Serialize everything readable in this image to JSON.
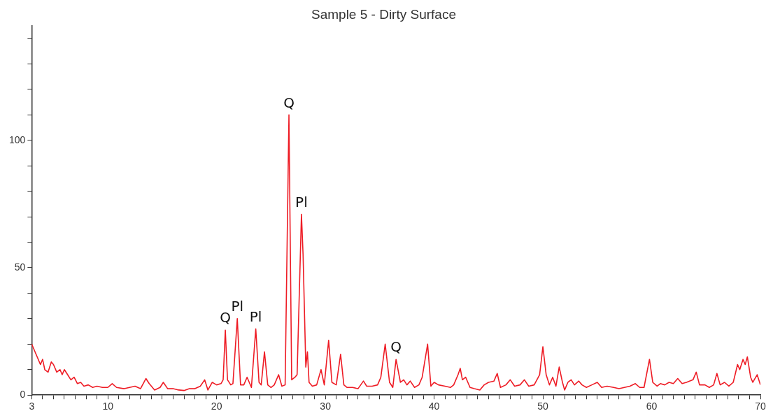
{
  "chart_data": {
    "type": "line",
    "title": "Sample 5 - Dirty Surface",
    "series": [
      {
        "color": "#ee1c25",
        "x": [
          3.0,
          3.3,
          3.5,
          3.8,
          4.0,
          4.2,
          4.5,
          4.8,
          5.0,
          5.3,
          5.6,
          5.8,
          6.0,
          6.3,
          6.6,
          6.9,
          7.2,
          7.5,
          7.8,
          8.2,
          8.6,
          9.0,
          9.5,
          10.0,
          10.4,
          10.8,
          11.5,
          12.0,
          12.5,
          13.0,
          13.5,
          13.8,
          14.3,
          14.8,
          15.1,
          15.5,
          16.0,
          16.5,
          17.0,
          17.5,
          18.0,
          18.5,
          18.9,
          19.2,
          19.6,
          20.0,
          20.4,
          20.6,
          20.8,
          21.0,
          21.3,
          21.5,
          21.9,
          22.2,
          22.5,
          22.8,
          23.2,
          23.6,
          23.9,
          24.1,
          24.4,
          24.7,
          25.0,
          25.3,
          25.7,
          26.0,
          26.3,
          26.65,
          26.9,
          27.2,
          27.4,
          27.8,
          27.95,
          28.2,
          28.35,
          28.5,
          28.8,
          29.2,
          29.6,
          29.9,
          30.3,
          30.6,
          31.0,
          31.4,
          31.7,
          32.0,
          32.5,
          33.0,
          33.5,
          33.8,
          34.3,
          34.8,
          35.1,
          35.5,
          35.9,
          36.2,
          36.5,
          36.9,
          37.2,
          37.5,
          37.8,
          38.2,
          38.6,
          38.9,
          39.4,
          39.7,
          40.0,
          40.4,
          41.0,
          41.5,
          41.8,
          42.2,
          42.4,
          42.6,
          42.9,
          43.3,
          43.7,
          44.2,
          44.6,
          45.0,
          45.5,
          45.8,
          46.1,
          46.6,
          47.0,
          47.4,
          47.9,
          48.3,
          48.7,
          49.2,
          49.7,
          50.0,
          50.3,
          50.6,
          50.9,
          51.2,
          51.5,
          51.8,
          52.0,
          52.3,
          52.6,
          52.9,
          53.3,
          53.6,
          54.0,
          54.5,
          55.0,
          55.4,
          55.9,
          56.5,
          57.0,
          57.5,
          58.0,
          58.5,
          58.9,
          59.3,
          59.8,
          60.1,
          60.5,
          60.8,
          61.2,
          61.6,
          62.0,
          62.4,
          62.8,
          63.2,
          63.8,
          64.1,
          64.4,
          64.9,
          65.3,
          65.7,
          66.0,
          66.3,
          66.7,
          67.1,
          67.5,
          67.9,
          68.1,
          68.4,
          68.6,
          68.8,
          69.1,
          69.3,
          69.7,
          70.0
        ],
        "values": [
          20,
          17,
          15,
          12,
          14,
          10,
          9,
          13,
          12,
          9,
          10,
          8,
          10,
          8,
          6,
          7,
          4.5,
          5,
          3.5,
          4,
          3,
          3.5,
          3,
          3,
          4.5,
          3,
          2.5,
          3,
          3.5,
          2.5,
          6.5,
          4.5,
          2,
          3,
          5,
          2.5,
          2.5,
          2,
          1.8,
          2.5,
          2.5,
          3.5,
          6,
          2,
          5,
          4,
          4.5,
          6,
          25.5,
          6,
          4,
          4.5,
          30,
          4,
          4,
          7,
          3,
          26,
          5,
          4,
          17,
          4,
          3,
          4,
          8,
          3.5,
          4,
          110,
          6,
          7,
          8,
          71,
          55,
          11,
          17,
          5,
          3.5,
          4,
          10,
          4,
          21.5,
          5,
          4,
          16,
          4,
          3,
          3,
          2.5,
          5.5,
          3.5,
          3.5,
          4,
          7,
          20,
          5,
          3,
          14,
          5,
          6,
          4,
          5.5,
          3,
          4,
          7,
          20,
          3.5,
          5,
          4,
          3.5,
          3,
          4,
          8,
          10.5,
          6,
          7,
          3,
          2.5,
          2,
          4,
          5,
          5.5,
          8.5,
          3,
          4,
          6,
          3.5,
          4,
          6,
          3.5,
          4,
          8,
          19,
          8,
          4,
          7,
          3.5,
          11,
          5,
          2,
          5,
          6,
          4,
          5.5,
          4,
          3,
          4,
          5,
          3,
          3.5,
          3,
          2.5,
          3,
          3.5,
          4.5,
          3,
          3,
          14,
          5,
          3.5,
          4.5,
          4,
          5,
          4.5,
          6.5,
          4.5,
          5,
          6,
          9,
          4,
          4,
          3,
          4,
          8.5,
          4,
          5,
          3.5,
          5,
          12,
          10,
          14,
          12,
          15,
          7,
          5,
          8,
          4
        ]
      }
    ],
    "xlim": [
      3,
      70
    ],
    "xticks": [
      3,
      {
        "value": 4,
        "label": null
      },
      {
        "value": 5,
        "label": null
      },
      {
        "value": 6,
        "label": null
      },
      {
        "value": 7,
        "label": null
      },
      {
        "value": 8,
        "label": null
      },
      {
        "value": 9,
        "label": null
      },
      10,
      {
        "value": 11,
        "label": null
      },
      {
        "value": 12,
        "label": null
      },
      {
        "value": 13,
        "label": null
      },
      {
        "value": 14,
        "label": null
      },
      {
        "value": 15,
        "label": null
      },
      {
        "value": 16,
        "label": null
      },
      {
        "value": 17,
        "label": null
      },
      {
        "value": 18,
        "label": null
      },
      {
        "value": 19,
        "label": null
      },
      20,
      {
        "value": 21,
        "label": null
      },
      {
        "value": 22,
        "label": null
      },
      {
        "value": 23,
        "label": null
      },
      {
        "value": 24,
        "label": null
      },
      {
        "value": 25,
        "label": null
      },
      {
        "value": 26,
        "label": null
      },
      {
        "value": 27,
        "label": null
      },
      {
        "value": 28,
        "label": null
      },
      {
        "value": 29,
        "label": null
      },
      30,
      {
        "value": 31,
        "label": null
      },
      {
        "value": 32,
        "label": null
      },
      {
        "value": 33,
        "label": null
      },
      {
        "value": 34,
        "label": null
      },
      {
        "value": 35,
        "label": null
      },
      {
        "value": 36,
        "label": null
      },
      {
        "value": 37,
        "label": null
      },
      {
        "value": 38,
        "label": null
      },
      {
        "value": 39,
        "label": null
      },
      40,
      {
        "value": 41,
        "label": null
      },
      {
        "value": 42,
        "label": null
      },
      {
        "value": 43,
        "label": null
      },
      {
        "value": 44,
        "label": null
      },
      {
        "value": 45,
        "label": null
      },
      {
        "value": 46,
        "label": null
      },
      {
        "value": 47,
        "label": null
      },
      {
        "value": 48,
        "label": null
      },
      {
        "value": 49,
        "label": null
      },
      50,
      {
        "value": 51,
        "label": null
      },
      {
        "value": 52,
        "label": null
      },
      {
        "value": 53,
        "label": null
      },
      {
        "value": 54,
        "label": null
      },
      {
        "value": 55,
        "label": null
      },
      {
        "value": 56,
        "label": null
      },
      {
        "value": 57,
        "label": null
      },
      {
        "value": 58,
        "label": null
      },
      {
        "value": 59,
        "label": null
      },
      60,
      {
        "value": 61,
        "label": null
      },
      {
        "value": 62,
        "label": null
      },
      {
        "value": 63,
        "label": null
      },
      {
        "value": 64,
        "label": null
      },
      {
        "value": 65,
        "label": null
      },
      {
        "value": 66,
        "label": null
      },
      {
        "value": 67,
        "label": null
      },
      {
        "value": 68,
        "label": null
      },
      {
        "value": 69,
        "label": null
      },
      70
    ],
    "ylim": [
      0,
      145
    ],
    "yticks": [
      0,
      {
        "value": 10,
        "label": null
      },
      {
        "value": 20,
        "label": null
      },
      {
        "value": 30,
        "label": null
      },
      {
        "value": 40,
        "label": null
      },
      50,
      {
        "value": 60,
        "label": null
      },
      {
        "value": 70,
        "label": null
      },
      {
        "value": 80,
        "label": null
      },
      {
        "value": 90,
        "label": null
      },
      100,
      {
        "value": 110,
        "label": null
      },
      {
        "value": 120,
        "label": null
      },
      {
        "value": 130,
        "label": null
      },
      {
        "value": 140,
        "label": null
      }
    ],
    "grid": false,
    "marker": "none",
    "line_style": "solid",
    "legend": false,
    "annotations": [
      {
        "text": "Q",
        "x": 20.8,
        "y": 25.5
      },
      {
        "text": "Pl",
        "x": 21.9,
        "y": 30
      },
      {
        "text": "Pl",
        "x": 23.6,
        "y": 26
      },
      {
        "text": "Q",
        "x": 26.65,
        "y": 110
      },
      {
        "text": "Pl",
        "x": 27.8,
        "y": 71
      },
      {
        "text": "Q",
        "x": 36.5,
        "y": 14
      }
    ]
  }
}
